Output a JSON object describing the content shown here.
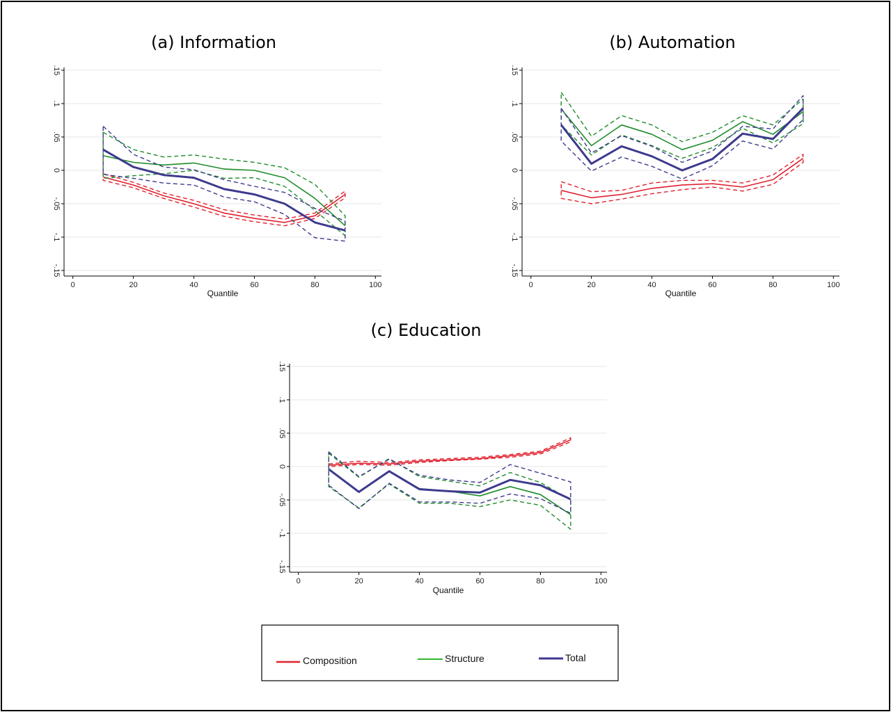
{
  "chart_data": [
    {
      "id": "information",
      "type": "line",
      "title": "(a) Information",
      "xlabel": "Quantile",
      "ylabel": "",
      "xlim": [
        0,
        100
      ],
      "ylim": [
        -0.15,
        0.15
      ],
      "xticks": [
        0,
        20,
        40,
        60,
        80,
        100
      ],
      "xtick_labels": [
        "0",
        "20",
        "40",
        "60",
        "80",
        "100"
      ],
      "yticks": [
        -0.15,
        -0.1,
        -0.05,
        0,
        0.05,
        0.1,
        0.15
      ],
      "ytick_labels": [
        "-.15",
        "-.1",
        "-.05",
        "0",
        ".05",
        ".1",
        ".15"
      ],
      "x": [
        10,
        20,
        30,
        40,
        50,
        60,
        70,
        80,
        90
      ],
      "series": [
        {
          "name": "Composition",
          "color": "#e0212e",
          "values": [
            -0.01,
            -0.022,
            -0.038,
            -0.05,
            -0.064,
            -0.072,
            -0.078,
            -0.068,
            -0.036
          ],
          "lower": [
            -0.015,
            -0.026,
            -0.042,
            -0.055,
            -0.069,
            -0.077,
            -0.083,
            -0.072,
            -0.041
          ],
          "upper": [
            -0.005,
            -0.018,
            -0.034,
            -0.045,
            -0.059,
            -0.067,
            -0.073,
            -0.064,
            -0.031
          ]
        },
        {
          "name": "Structure",
          "color": "#1e8c2a",
          "values": [
            0.022,
            0.012,
            0.008,
            0.011,
            0.002,
            0.0,
            -0.011,
            -0.042,
            -0.083
          ],
          "lower": [
            -0.012,
            -0.008,
            -0.005,
            0.0,
            -0.012,
            -0.011,
            -0.024,
            -0.06,
            -0.098
          ],
          "upper": [
            0.057,
            0.031,
            0.02,
            0.023,
            0.017,
            0.012,
            0.004,
            -0.021,
            -0.068
          ]
        },
        {
          "name": "Total",
          "color": "#3d3a8e",
          "values": [
            0.031,
            0.005,
            -0.007,
            -0.011,
            -0.028,
            -0.036,
            -0.05,
            -0.078,
            -0.09
          ],
          "lower": [
            -0.006,
            -0.012,
            -0.019,
            -0.022,
            -0.04,
            -0.047,
            -0.066,
            -0.101,
            -0.106
          ],
          "upper": [
            0.066,
            0.024,
            0.005,
            0.001,
            -0.014,
            -0.024,
            -0.033,
            -0.057,
            -0.076
          ]
        }
      ]
    },
    {
      "id": "automation",
      "type": "line",
      "title": "(b) Automation",
      "xlabel": "Quantile",
      "ylabel": "",
      "xlim": [
        0,
        100
      ],
      "ylim": [
        -0.15,
        0.15
      ],
      "xticks": [
        0,
        20,
        40,
        60,
        80,
        100
      ],
      "xtick_labels": [
        "0",
        "20",
        "40",
        "60",
        "80",
        "100"
      ],
      "yticks": [
        -0.15,
        -0.1,
        -0.05,
        0,
        0.05,
        0.1,
        0.15
      ],
      "ytick_labels": [
        "-.15",
        "-.1",
        "-.05",
        "0",
        ".05",
        ".1",
        ".15"
      ],
      "x": [
        10,
        20,
        30,
        40,
        50,
        60,
        70,
        80,
        90
      ],
      "series": [
        {
          "name": "Composition",
          "color": "#e0212e",
          "values": [
            -0.03,
            -0.041,
            -0.036,
            -0.027,
            -0.022,
            -0.02,
            -0.025,
            -0.014,
            0.018
          ],
          "lower": [
            -0.042,
            -0.05,
            -0.043,
            -0.035,
            -0.029,
            -0.025,
            -0.031,
            -0.021,
            0.012
          ],
          "upper": [
            -0.017,
            -0.032,
            -0.03,
            -0.019,
            -0.015,
            -0.015,
            -0.019,
            -0.007,
            0.024
          ]
        },
        {
          "name": "Structure",
          "color": "#1e8c2a",
          "values": [
            0.092,
            0.037,
            0.068,
            0.054,
            0.031,
            0.045,
            0.073,
            0.054,
            0.088
          ],
          "lower": [
            0.068,
            0.023,
            0.053,
            0.037,
            0.018,
            0.034,
            0.063,
            0.041,
            0.07
          ],
          "upper": [
            0.117,
            0.051,
            0.082,
            0.068,
            0.043,
            0.057,
            0.082,
            0.068,
            0.107
          ]
        },
        {
          "name": "Total",
          "color": "#3d3a8e",
          "values": [
            0.068,
            0.01,
            0.036,
            0.021,
            0.0,
            0.017,
            0.055,
            0.047,
            0.093
          ],
          "lower": [
            0.044,
            -0.001,
            0.02,
            0.006,
            -0.013,
            0.007,
            0.044,
            0.032,
            0.076
          ],
          "upper": [
            0.093,
            0.026,
            0.052,
            0.036,
            0.012,
            0.029,
            0.066,
            0.062,
            0.112
          ]
        }
      ]
    },
    {
      "id": "education",
      "type": "line",
      "title": "(c) Education",
      "xlabel": "Quantile",
      "ylabel": "",
      "xlim": [
        0,
        100
      ],
      "ylim": [
        -0.15,
        0.15
      ],
      "xticks": [
        0,
        20,
        40,
        60,
        80,
        100
      ],
      "xtick_labels": [
        "0",
        "20",
        "40",
        "60",
        "80",
        "100"
      ],
      "yticks": [
        -0.15,
        -0.1,
        -0.05,
        0,
        0.05,
        0.1,
        0.15
      ],
      "ytick_labels": [
        "-.15",
        "-.1",
        "-.05",
        "0",
        ".05",
        ".1",
        ".15"
      ],
      "x": [
        10,
        20,
        30,
        40,
        50,
        60,
        70,
        80,
        90
      ],
      "series": [
        {
          "name": "Composition",
          "color": "#e0212e",
          "values": [
            0.002,
            0.005,
            0.004,
            0.008,
            0.01,
            0.012,
            0.016,
            0.021,
            0.04
          ],
          "lower": [
            0.0,
            0.003,
            0.002,
            0.006,
            0.009,
            0.011,
            0.014,
            0.019,
            0.037
          ],
          "upper": [
            0.004,
            0.008,
            0.006,
            0.01,
            0.012,
            0.014,
            0.018,
            0.023,
            0.043
          ]
        },
        {
          "name": "Structure",
          "color": "#1e8c2a",
          "values": [
            -0.003,
            -0.038,
            -0.007,
            -0.033,
            -0.037,
            -0.044,
            -0.03,
            -0.042,
            -0.072
          ],
          "lower": [
            -0.03,
            -0.062,
            -0.026,
            -0.055,
            -0.055,
            -0.06,
            -0.05,
            -0.058,
            -0.094
          ],
          "upper": [
            0.02,
            -0.016,
            0.012,
            -0.015,
            -0.022,
            -0.029,
            -0.009,
            -0.024,
            -0.05
          ]
        },
        {
          "name": "Total",
          "color": "#3d3a8e",
          "values": [
            -0.004,
            -0.038,
            -0.007,
            -0.034,
            -0.037,
            -0.039,
            -0.02,
            -0.028,
            -0.049
          ],
          "lower": [
            -0.028,
            -0.063,
            -0.025,
            -0.053,
            -0.053,
            -0.055,
            -0.041,
            -0.048,
            -0.07
          ],
          "upper": [
            0.022,
            -0.015,
            0.011,
            -0.013,
            -0.02,
            -0.024,
            0.003,
            -0.01,
            -0.023
          ]
        }
      ]
    }
  ],
  "legend": {
    "items": [
      {
        "label": "Composition",
        "color": "#e0212e"
      },
      {
        "label": "Structure",
        "color": "#2db82d"
      },
      {
        "label": "Total",
        "color": "#3d3a8e"
      }
    ]
  }
}
